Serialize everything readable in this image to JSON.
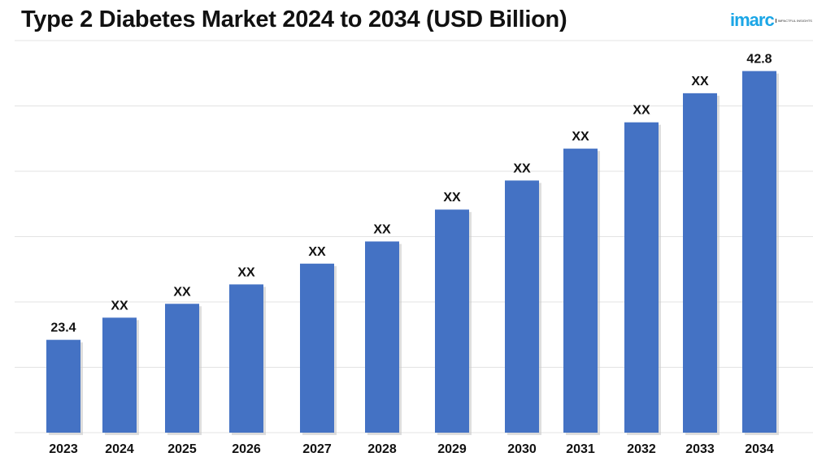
{
  "chart_data": {
    "type": "bar",
    "title": "Type 2 Diabetes Market 2024 to 2034 (USD Billion)",
    "xlabel": "",
    "ylabel": "",
    "categories": [
      "2023",
      "2024",
      "2025",
      "2026",
      "2027",
      "2028",
      "2029",
      "2030",
      "2031",
      "2032",
      "2033",
      "2034"
    ],
    "values": [
      23.4,
      25.0,
      26.0,
      27.4,
      28.9,
      30.5,
      32.8,
      34.9,
      37.2,
      39.1,
      41.2,
      42.8
    ],
    "data_labels": [
      "23.4",
      "XX",
      "XX",
      "XX",
      "XX",
      "XX",
      "XX",
      "XX",
      "XX",
      "XX",
      "XX",
      "42.8"
    ],
    "ylim": [
      16.7,
      45
    ],
    "grid": true,
    "legend": "none",
    "bar_color": "#4472c4"
  },
  "logo": {
    "word": "imarc",
    "tagline": "IMPACTFUL INSIGHTS"
  }
}
